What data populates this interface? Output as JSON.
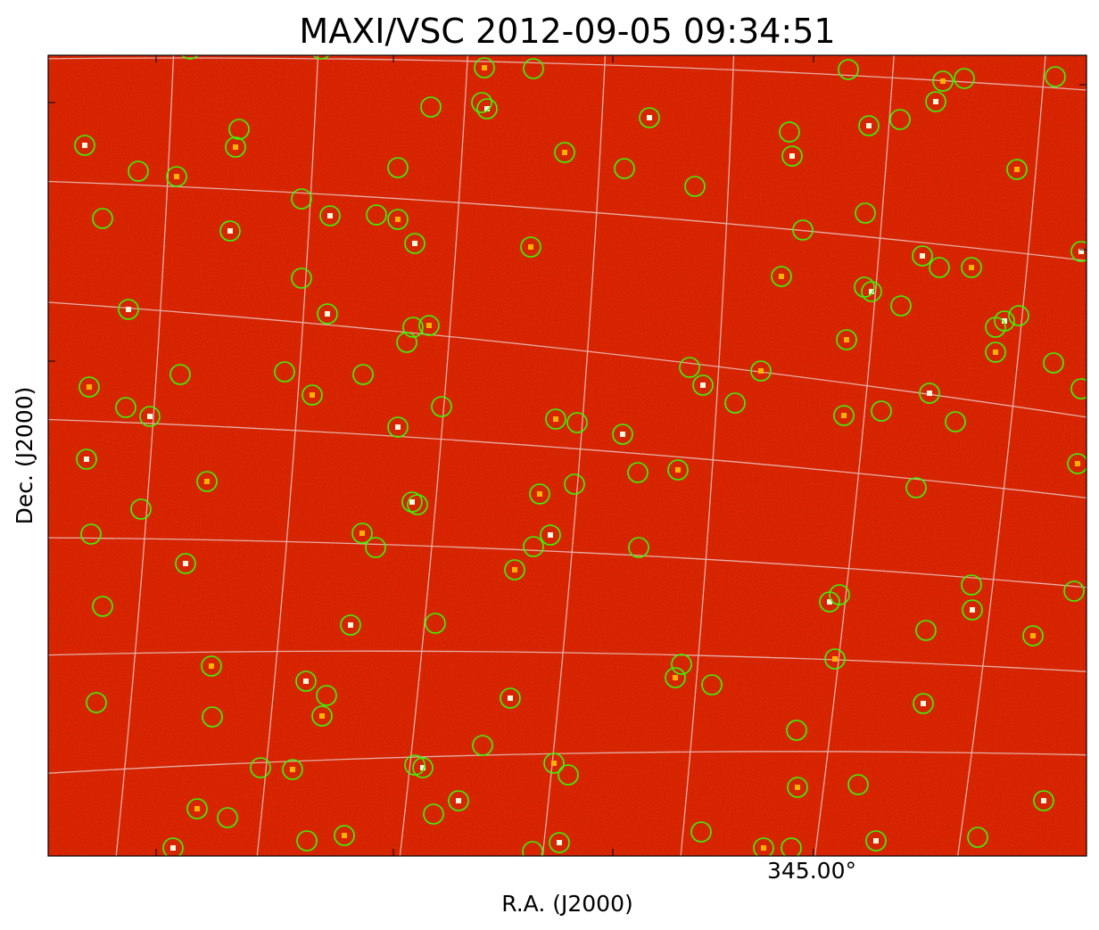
{
  "title": "MAXI/VSC 2012-09-05 09:34:51",
  "x_axis": {
    "label": "R.A. (J2000)",
    "tick": "345.00°"
  },
  "y_axis": {
    "label": "Dec. (J2000)"
  }
}
